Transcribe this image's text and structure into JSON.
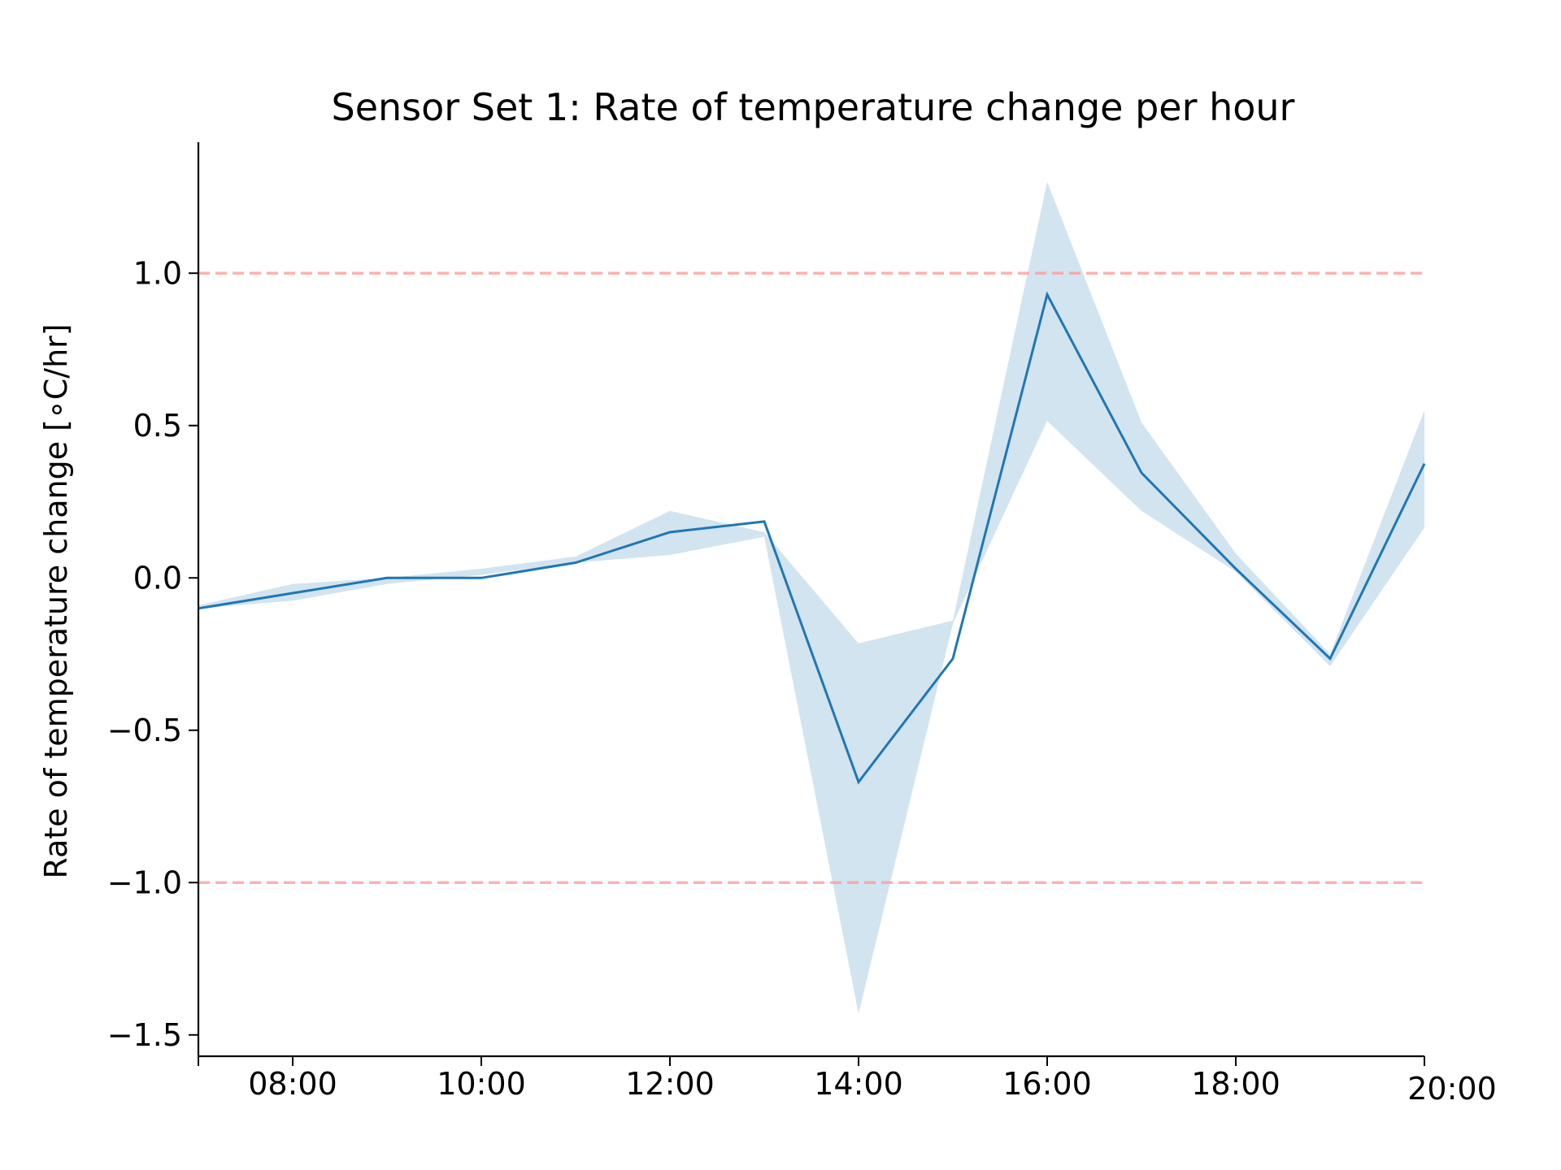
{
  "chart_data": {
    "type": "line",
    "title": "Sensor Set 1: Rate of temperature change per hour",
    "xlabel": "",
    "ylabel": "Rate of temperature change [∘C/hr]",
    "x": [
      "07:00",
      "08:00",
      "09:00",
      "10:00",
      "11:00",
      "12:00",
      "13:00",
      "14:00",
      "15:00",
      "16:00",
      "17:00",
      "18:00",
      "19:00",
      "20:00"
    ],
    "xticks": [
      "08:00",
      "10:00",
      "12:00",
      "14:00",
      "16:00",
      "18:00",
      "20:00"
    ],
    "yticks": [
      "1.0",
      "0.5",
      "0.0",
      "−0.5",
      "−1.0",
      "−1.5"
    ],
    "ylim": [
      -1.57,
      1.43
    ],
    "series": [
      {
        "values": [
          -0.1,
          -0.05,
          0.0,
          0.0,
          0.05,
          0.15,
          0.185,
          -0.67,
          -0.265,
          0.93,
          0.345,
          0.03,
          -0.265,
          0.375
        ],
        "lower": [
          -0.1,
          -0.075,
          -0.02,
          0.01,
          0.05,
          0.075,
          0.135,
          -1.43,
          -0.15,
          0.515,
          0.22,
          0.02,
          -0.29,
          0.165
        ],
        "upper": [
          -0.09,
          -0.02,
          0.0,
          0.03,
          0.07,
          0.22,
          0.15,
          -0.215,
          -0.14,
          1.3,
          0.51,
          0.08,
          -0.25,
          0.55
        ],
        "color": "#1f77b4",
        "band_color": "#1f77b4"
      }
    ],
    "reference_lines": [
      {
        "y": 1.0,
        "style": "dashed",
        "color": "#ff9896"
      },
      {
        "y": -1.0,
        "style": "dashed",
        "color": "#ff9896"
      }
    ],
    "grid": false,
    "spines": [
      "left",
      "bottom"
    ]
  }
}
